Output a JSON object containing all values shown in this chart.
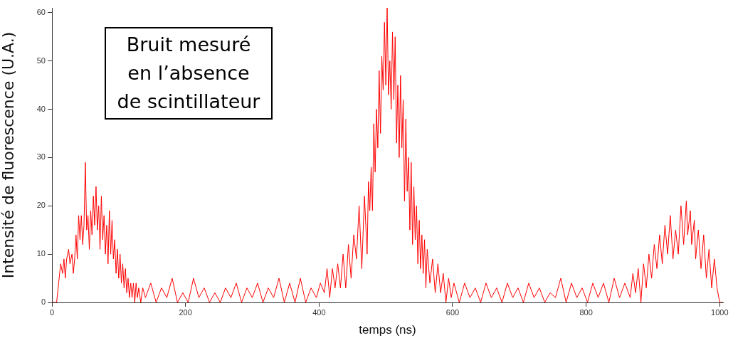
{
  "chart_data": {
    "type": "line",
    "xlabel": "temps (ns)",
    "ylabel": "Intensité de fluorescence (U.A.)",
    "annotations": [
      "Bruit mesuré\nen l’absence\nde scintillateur"
    ],
    "xlim": [
      0,
      1005
    ],
    "xticks": [
      0,
      200,
      400,
      600,
      800,
      1000
    ],
    "ylim": [
      0,
      61
    ],
    "yticks": [
      0,
      10,
      20,
      30,
      40,
      50,
      60
    ],
    "grid": false,
    "legend": false,
    "marker": "none",
    "line_style": "solid",
    "x": [
      0,
      7,
      10,
      13,
      16,
      18,
      20,
      22,
      25,
      27,
      30,
      32,
      34,
      36,
      38,
      40,
      42,
      44,
      46,
      48,
      50,
      52,
      54,
      56,
      58,
      60,
      62,
      64,
      66,
      68,
      70,
      72,
      74,
      76,
      78,
      80,
      82,
      84,
      86,
      88,
      90,
      92,
      94,
      96,
      98,
      100,
      102,
      104,
      106,
      108,
      110,
      112,
      114,
      116,
      118,
      120,
      122,
      124,
      126,
      128,
      130,
      133,
      136,
      140,
      148,
      156,
      164,
      172,
      180,
      188,
      196,
      204,
      212,
      220,
      228,
      236,
      244,
      252,
      260,
      268,
      276,
      284,
      292,
      300,
      308,
      316,
      324,
      332,
      340,
      348,
      356,
      364,
      372,
      380,
      388,
      396,
      402,
      408,
      412,
      416,
      420,
      424,
      428,
      432,
      436,
      440,
      444,
      448,
      452,
      456,
      460,
      464,
      468,
      472,
      474,
      476,
      478,
      480,
      482,
      484,
      486,
      488,
      490,
      492,
      494,
      496,
      498,
      500,
      502,
      504,
      506,
      508,
      510,
      512,
      514,
      516,
      518,
      520,
      522,
      524,
      526,
      528,
      530,
      532,
      534,
      536,
      538,
      540,
      542,
      544,
      546,
      548,
      550,
      552,
      554,
      556,
      558,
      560,
      562,
      566,
      570,
      574,
      578,
      582,
      586,
      590,
      594,
      598,
      602,
      610,
      618,
      626,
      634,
      642,
      650,
      658,
      666,
      674,
      682,
      690,
      698,
      706,
      714,
      722,
      730,
      738,
      746,
      754,
      762,
      770,
      778,
      786,
      794,
      802,
      810,
      818,
      826,
      834,
      842,
      850,
      858,
      866,
      870,
      874,
      878,
      882,
      886,
      890,
      894,
      898,
      902,
      906,
      910,
      914,
      918,
      922,
      926,
      930,
      934,
      938,
      942,
      946,
      950,
      952,
      956,
      958,
      962,
      964,
      968,
      972,
      976,
      980,
      984,
      988,
      992,
      996,
      1000,
      1005
    ],
    "series": [
      {
        "color": "#ff0000",
        "values": [
          0,
          0,
          4,
          8,
          6,
          9,
          5,
          9,
          11,
          8,
          10,
          6,
          9,
          14,
          9,
          18,
          13,
          18,
          12,
          16,
          29,
          15,
          18,
          11,
          19,
          14,
          22,
          16,
          24,
          15,
          20,
          11,
          22,
          13,
          18,
          10,
          16,
          8,
          19,
          10,
          17,
          9,
          13,
          6,
          11,
          5,
          10,
          4,
          8,
          3,
          7,
          2,
          5,
          1,
          4,
          1,
          4,
          0,
          4,
          1,
          3,
          0,
          3,
          1,
          4,
          0,
          3,
          1,
          5,
          0,
          2,
          0,
          5,
          1,
          3,
          0,
          2,
          0,
          3,
          1,
          4,
          0,
          3,
          1,
          4,
          0,
          3,
          1,
          5,
          0,
          4,
          0,
          5,
          0,
          3,
          1,
          4,
          2,
          7,
          1,
          7,
          3,
          8,
          3,
          10,
          3,
          12,
          5,
          14,
          9,
          20,
          7,
          22,
          10,
          25,
          19,
          28,
          19,
          37,
          27,
          40,
          32,
          48,
          35,
          51,
          44,
          58,
          45,
          61,
          43,
          50,
          40,
          56,
          42,
          55,
          33,
          45,
          30,
          47,
          32,
          42,
          21,
          38,
          23,
          30,
          15,
          29,
          12,
          24,
          13,
          20,
          8,
          17,
          7,
          14,
          6,
          13,
          3,
          11,
          4,
          9,
          2,
          8,
          2,
          6,
          0,
          5,
          1,
          4,
          0,
          4,
          1,
          3,
          0,
          4,
          1,
          3,
          0,
          4,
          1,
          3,
          0,
          4,
          1,
          3,
          0,
          2,
          1,
          5,
          0,
          4,
          1,
          3,
          0,
          4,
          1,
          4,
          0,
          5,
          1,
          4,
          1,
          6,
          2,
          7,
          0,
          8,
          3,
          10,
          5,
          12,
          7,
          14,
          8,
          16,
          10,
          18,
          9,
          15,
          10,
          20,
          12,
          21,
          14,
          19,
          12,
          17,
          9,
          15,
          7,
          14,
          5,
          11,
          3,
          9,
          3,
          0,
          0
        ]
      }
    ]
  }
}
